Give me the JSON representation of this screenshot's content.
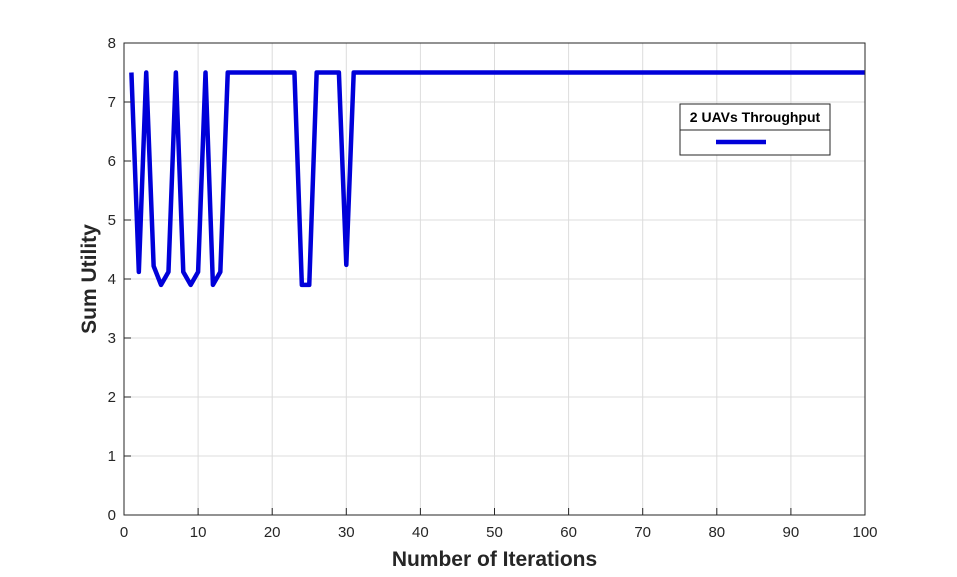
{
  "chart_data": {
    "type": "line",
    "title": "",
    "xlabel": "Number of Iterations",
    "ylabel": "Sum Utility",
    "xlim": [
      0,
      100
    ],
    "ylim": [
      0,
      8
    ],
    "xticks": [
      0,
      10,
      20,
      30,
      40,
      50,
      60,
      70,
      80,
      90,
      100
    ],
    "yticks": [
      0,
      1,
      2,
      3,
      4,
      5,
      6,
      7,
      8
    ],
    "grid": true,
    "legend": {
      "title": "2 UAVs Throughput",
      "placement": "top-right"
    },
    "series": [
      {
        "name": "",
        "color": "#0000d9",
        "x": [
          1,
          2,
          3,
          4,
          5,
          6,
          7,
          8,
          9,
          10,
          11,
          12,
          13,
          14,
          15,
          16,
          17,
          18,
          19,
          20,
          21,
          22,
          23,
          24,
          25,
          26,
          27,
          28,
          29,
          30,
          31,
          32,
          40,
          50,
          60,
          70,
          80,
          90,
          100
        ],
        "y": [
          7.5,
          4.12,
          7.5,
          4.22,
          3.9,
          4.12,
          7.5,
          4.12,
          3.9,
          4.12,
          7.5,
          3.9,
          4.12,
          7.5,
          7.5,
          7.5,
          7.5,
          7.5,
          7.5,
          7.5,
          7.5,
          7.5,
          7.5,
          3.9,
          3.9,
          7.5,
          7.5,
          7.5,
          7.5,
          4.24,
          7.5,
          7.5,
          7.5,
          7.5,
          7.5,
          7.5,
          7.5,
          7.5,
          7.5
        ]
      }
    ]
  }
}
